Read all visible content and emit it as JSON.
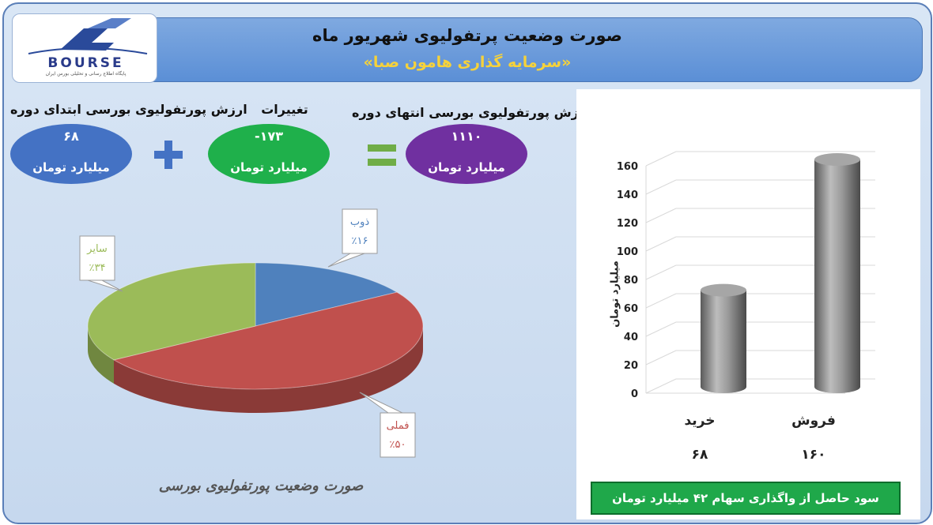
{
  "header": {
    "title": "صورت وضعیت پرتفولیوی شهریور ماه",
    "subtitle": "«سرمایه گذاری هامون صبا»"
  },
  "logo": {
    "text": "BOURSE",
    "tagline": "پایگاه اطلاع رسانی و تحلیلی بورس ایران"
  },
  "summary": {
    "start_label": "ارزش پورتفولیوی بورسی ابتدای دوره",
    "start_value": "۶۸",
    "change_label": "تغییرات",
    "change_value": "-۱۷۳",
    "end_label": "ارزش پورتفولیوی بورسی انتهای دوره",
    "end_value": "۱۱۱۰",
    "unit": "میلیارد تومان",
    "colors": {
      "start": "#4472c4",
      "change": "#1fb04b",
      "end": "#7030a0"
    }
  },
  "chart_data": [
    {
      "type": "pie",
      "title": "صورت وضعیت پورتفولیوی بورسی",
      "slices": [
        {
          "name": "ذوب",
          "value": 16,
          "label": "٪۱۶",
          "color": "#4f81bd"
        },
        {
          "name": "فملی",
          "value": 50,
          "label": "٪۵۰",
          "color": "#c0504d"
        },
        {
          "name": "سایر",
          "value": 34,
          "label": "٪۳۴",
          "color": "#9bbb59"
        }
      ]
    },
    {
      "type": "bar",
      "categories": [
        "خرید",
        "فروش"
      ],
      "values": [
        68,
        160
      ],
      "value_labels": [
        "۶۸",
        "۱۶۰"
      ],
      "ylabel": "میلیارد تومان",
      "ylim": [
        0,
        160
      ],
      "yticks": [
        0,
        20,
        40,
        60,
        80,
        100,
        120,
        140,
        160
      ],
      "note": "سود حاصل از واگذاری سهام ۴۲ میلیارد تومان"
    }
  ]
}
